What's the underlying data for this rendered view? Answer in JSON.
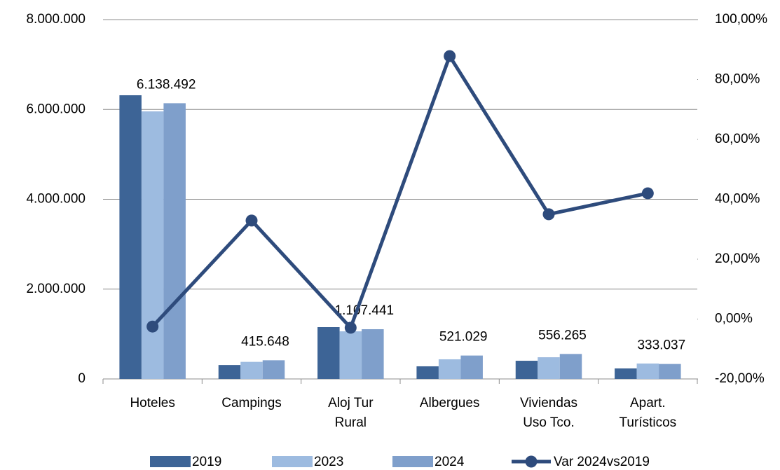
{
  "chart_data": {
    "type": "bar-line",
    "categories": [
      "Hoteles",
      "Campings",
      "Aloj Tur Rural",
      "Albergues",
      "Viviendas Uso Tco.",
      "Apart. Turísticos"
    ],
    "series": [
      {
        "name": "2019",
        "color": "#3d6496",
        "values": [
          6316000,
          310000,
          1154000,
          281000,
          405000,
          234000
        ]
      },
      {
        "name": "2023",
        "color": "#9dbbe0",
        "values": [
          5957000,
          380000,
          1060000,
          437000,
          483000,
          343000
        ]
      },
      {
        "name": "2024",
        "color": "#7f9fcb",
        "values": [
          6138492,
          415648,
          1107441,
          521029,
          556265,
          333037
        ],
        "value_labels": [
          "6.138.492",
          "415.648",
          "1.107.441",
          "521.029",
          "556.265",
          "333.037"
        ]
      },
      {
        "name": "Var 2024vs2019",
        "color": "#2e4b7c",
        "axis": "y2",
        "type": "line",
        "values": [
          -2.5,
          32.9,
          -2.9,
          87.8,
          35,
          42
        ]
      }
    ],
    "ylim": [
      0,
      8000000
    ],
    "yticks": [
      0,
      {
        "value": 2000000,
        "label": "2.000.000"
      },
      {
        "value": 4000000,
        "label": "4.000.000"
      },
      {
        "value": 6000000,
        "label": "6.000.000"
      },
      {
        "value": 8000000,
        "label": "8.000.000"
      }
    ],
    "y2lim": [
      -20,
      100
    ],
    "y2ticks": [
      {
        "value": -20,
        "label": "-20,00%"
      },
      {
        "value": 0,
        "label": "0,00%"
      },
      {
        "value": 20,
        "label": "20,00%"
      },
      {
        "value": 40,
        "label": "40,00%"
      },
      {
        "value": 60,
        "label": "60,00%"
      },
      {
        "value": 80,
        "label": "80,00%"
      },
      {
        "value": 100,
        "label": "100,00%"
      }
    ],
    "grid": true,
    "legend": "bottom"
  }
}
